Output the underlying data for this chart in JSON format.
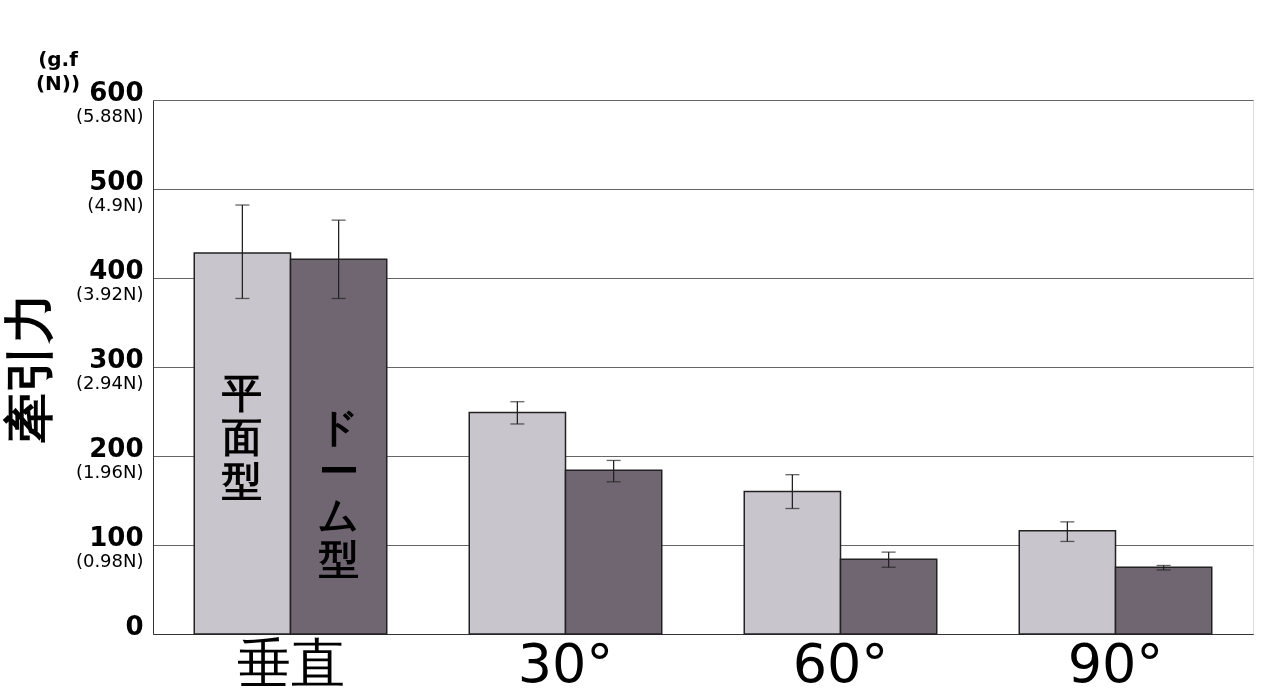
{
  "chart_data": {
    "type": "bar",
    "y2label": "牽引力",
    "annotations": [
      "(g.f\n(N))"
    ],
    "categories": [
      "垂直",
      "30°",
      "60°",
      "90°"
    ],
    "series": [
      {
        "name": "平面型",
        "color": "#c9c5cd",
        "values": [
          428,
          249,
          160,
          116
        ],
        "errors": [
          [
            377,
            482
          ],
          [
            236,
            261
          ],
          [
            141,
            179
          ],
          [
            104,
            126
          ]
        ]
      },
      {
        "name": "ドーム型",
        "color": "#6f6672",
        "values": [
          421,
          184,
          84,
          75
        ],
        "errors": [
          [
            377,
            465
          ],
          [
            171,
            195
          ],
          [
            75,
            92
          ],
          [
            72,
            77
          ]
        ]
      }
    ],
    "ylim": [
      0,
      600
    ],
    "yticks": [
      0,
      100,
      200,
      300,
      400,
      500,
      600
    ],
    "y2lim": [
      0,
      5.88
    ],
    "y2ticks": [
      {
        "value": 0.98,
        "label": "(0.98N)"
      },
      {
        "value": 1.96,
        "label": "(1.96N)"
      },
      {
        "value": 2.94,
        "label": "(2.94N)"
      },
      {
        "value": 3.92,
        "label": "(3.92N)"
      },
      {
        "value": 4.9,
        "label": "(4.9N)"
      },
      {
        "value": 5.88,
        "label": "(5.88N)"
      }
    ],
    "grid": "y",
    "legend": false
  }
}
